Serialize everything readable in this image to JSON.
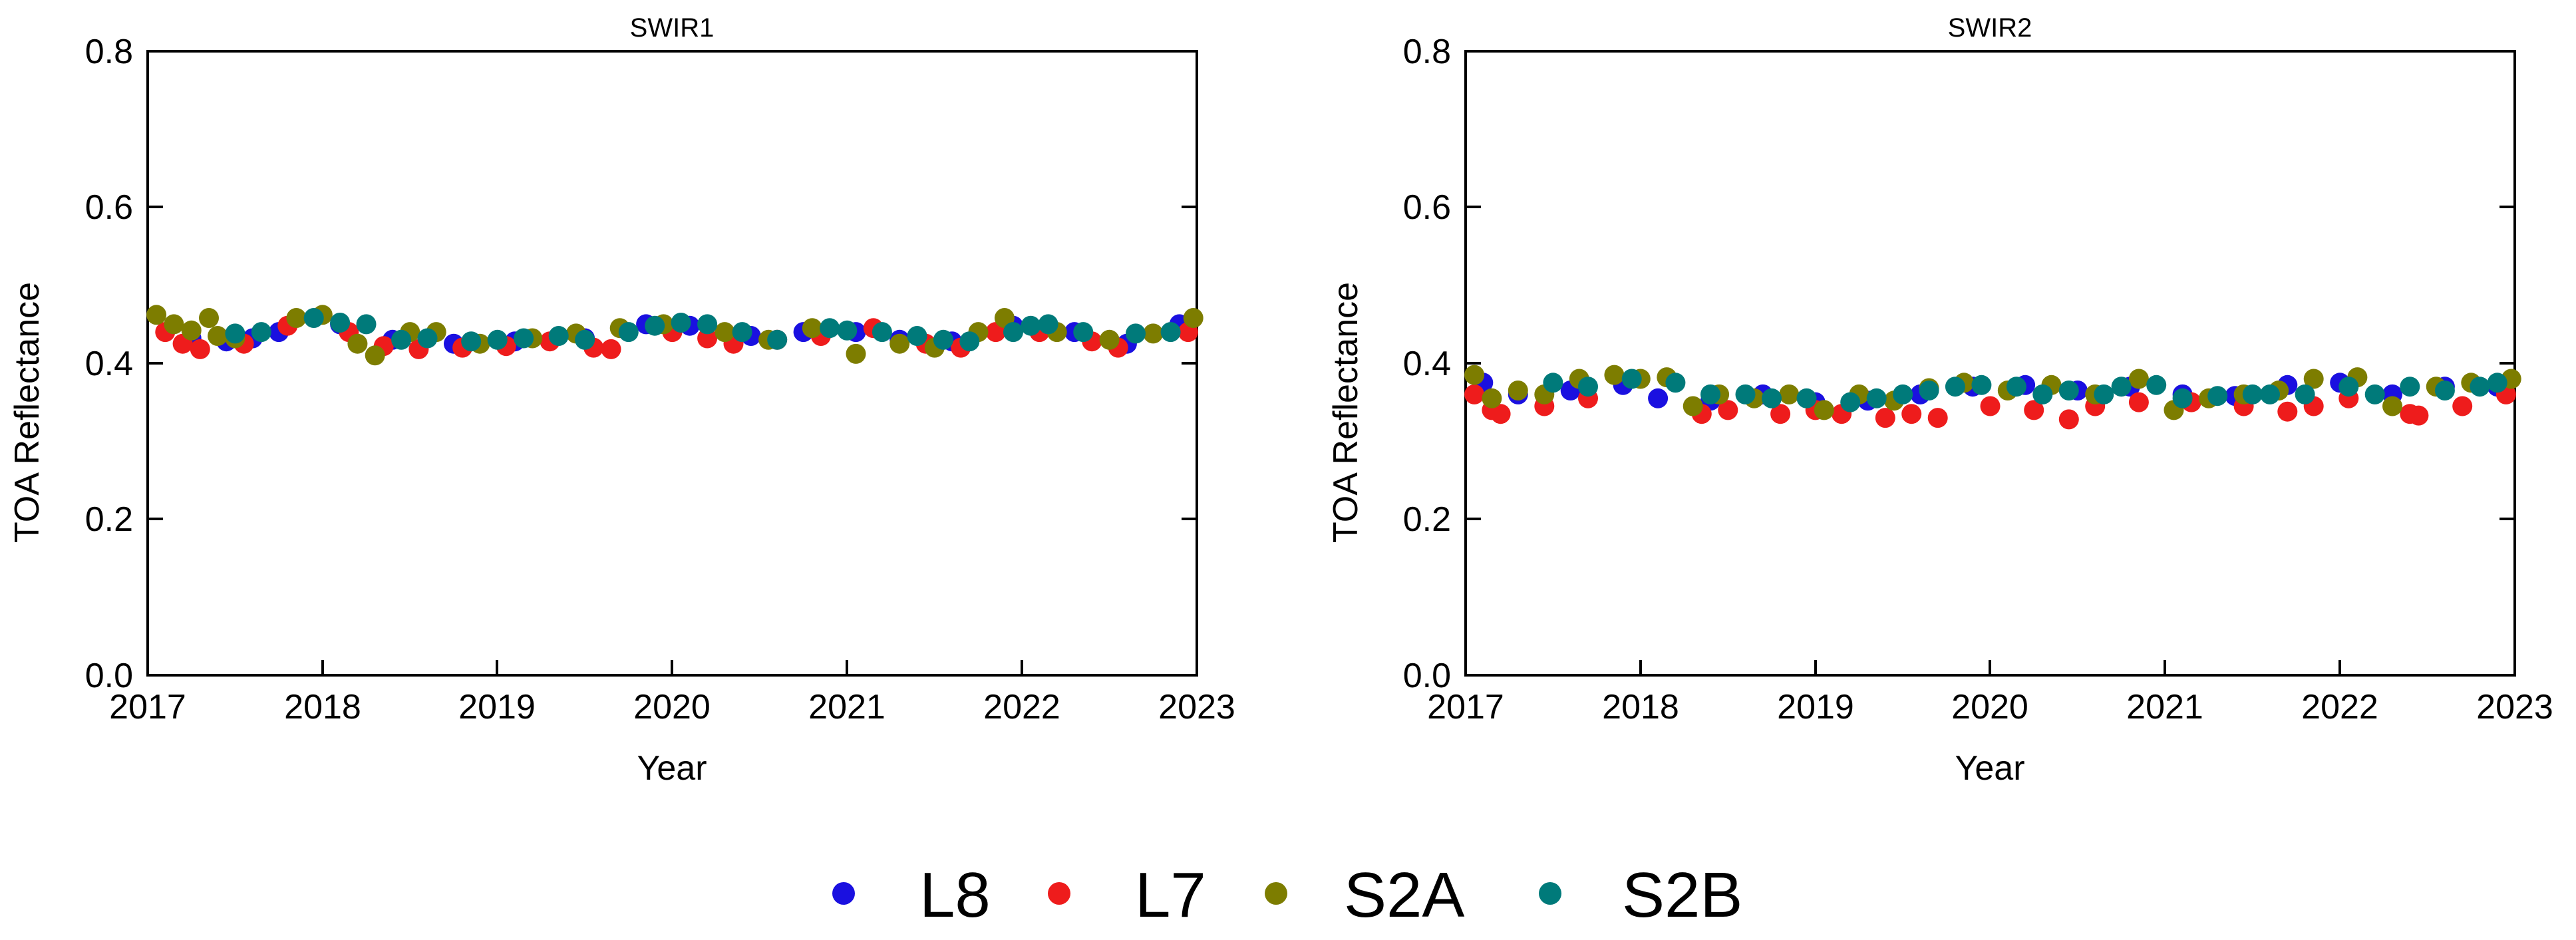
{
  "figure": {
    "legend": [
      {
        "label": "L8",
        "color": "#1a10e0"
      },
      {
        "label": "L7",
        "color": "#ee1c1c"
      },
      {
        "label": "S2A",
        "color": "#7d7d00"
      },
      {
        "label": "S2B",
        "color": "#007a7a"
      }
    ]
  },
  "chart_data": [
    {
      "type": "scatter",
      "title": "SWIR1",
      "xlabel": "Year",
      "ylabel": "TOA Reflectance",
      "xlim": [
        2017,
        2023
      ],
      "ylim": [
        0.0,
        0.8
      ],
      "xticks": [
        "2017",
        "2018",
        "2019",
        "2020",
        "2021",
        "2022",
        "2023"
      ],
      "yticks": [
        "0.0",
        "0.2",
        "0.4",
        "0.6",
        "0.8"
      ],
      "grid": false,
      "legend_position": "bottom",
      "series": [
        {
          "name": "L8",
          "color": "#1a10e0",
          "x": [
            2017.25,
            2017.45,
            2017.6,
            2017.75,
            2018.1,
            2018.4,
            2018.75,
            2019.1,
            2019.5,
            2019.85,
            2020.1,
            2020.45,
            2020.75,
            2021.05,
            2021.3,
            2021.6,
            2021.95,
            2022.3,
            2022.6,
            2022.9
          ],
          "y": [
            0.432,
            0.428,
            0.432,
            0.44,
            0.45,
            0.43,
            0.425,
            0.428,
            0.432,
            0.45,
            0.448,
            0.435,
            0.44,
            0.44,
            0.43,
            0.428,
            0.448,
            0.44,
            0.425,
            0.45
          ]
        },
        {
          "name": "L7",
          "color": "#ee1c1c",
          "x": [
            2017.1,
            2017.2,
            2017.3,
            2017.55,
            2017.8,
            2018.15,
            2018.35,
            2018.55,
            2018.8,
            2019.05,
            2019.3,
            2019.55,
            2019.65,
            2020.0,
            2020.2,
            2020.35,
            2020.6,
            2020.85,
            2021.15,
            2021.45,
            2021.65,
            2021.85,
            2022.1,
            2022.4,
            2022.55,
            2022.95
          ],
          "y": [
            0.44,
            0.425,
            0.418,
            0.425,
            0.448,
            0.44,
            0.422,
            0.418,
            0.42,
            0.422,
            0.428,
            0.42,
            0.418,
            0.44,
            0.432,
            0.425,
            0.43,
            0.435,
            0.445,
            0.425,
            0.42,
            0.44,
            0.44,
            0.428,
            0.42,
            0.44
          ]
        },
        {
          "name": "S2A",
          "color": "#7d7d00",
          "x": [
            2017.05,
            2017.15,
            2017.25,
            2017.35,
            2017.4,
            2017.5,
            2017.85,
            2018.0,
            2018.2,
            2018.3,
            2018.5,
            2018.65,
            2018.9,
            2019.2,
            2019.45,
            2019.7,
            2019.95,
            2020.3,
            2020.55,
            2020.8,
            2021.05,
            2021.3,
            2021.5,
            2021.75,
            2021.9,
            2022.2,
            2022.5,
            2022.75,
            2022.98
          ],
          "y": [
            0.462,
            0.45,
            0.442,
            0.458,
            0.435,
            0.432,
            0.458,
            0.462,
            0.425,
            0.41,
            0.44,
            0.44,
            0.425,
            0.432,
            0.438,
            0.445,
            0.45,
            0.44,
            0.43,
            0.445,
            0.412,
            0.425,
            0.42,
            0.44,
            0.458,
            0.44,
            0.43,
            0.438,
            0.458
          ]
        },
        {
          "name": "S2B",
          "color": "#007a7a",
          "x": [
            2017.5,
            2017.65,
            2017.95,
            2018.1,
            2018.25,
            2018.45,
            2018.6,
            2018.85,
            2019.0,
            2019.15,
            2019.35,
            2019.5,
            2019.75,
            2019.9,
            2020.05,
            2020.2,
            2020.4,
            2020.6,
            2020.9,
            2021.0,
            2021.2,
            2021.4,
            2021.55,
            2021.7,
            2021.95,
            2022.05,
            2022.15,
            2022.35,
            2022.65,
            2022.85
          ],
          "y": [
            0.438,
            0.44,
            0.458,
            0.452,
            0.45,
            0.43,
            0.432,
            0.428,
            0.43,
            0.432,
            0.435,
            0.43,
            0.44,
            0.448,
            0.452,
            0.45,
            0.44,
            0.43,
            0.445,
            0.442,
            0.44,
            0.435,
            0.43,
            0.428,
            0.44,
            0.448,
            0.45,
            0.44,
            0.438,
            0.44
          ]
        }
      ]
    },
    {
      "type": "scatter",
      "title": "SWIR2",
      "xlabel": "Year",
      "ylabel": "TOA Reflectance",
      "xlim": [
        2017,
        2023
      ],
      "ylim": [
        0.0,
        0.8
      ],
      "xticks": [
        "2017",
        "2018",
        "2019",
        "2020",
        "2021",
        "2022",
        "2023"
      ],
      "yticks": [
        "0.0",
        "0.2",
        "0.4",
        "0.6",
        "0.8"
      ],
      "grid": false,
      "legend_position": "bottom",
      "series": [
        {
          "name": "L8",
          "color": "#1a10e0",
          "x": [
            2017.1,
            2017.3,
            2017.6,
            2017.9,
            2018.1,
            2018.4,
            2018.7,
            2019.0,
            2019.3,
            2019.6,
            2019.9,
            2020.2,
            2020.5,
            2020.8,
            2021.1,
            2021.4,
            2021.7,
            2022.0,
            2022.3,
            2022.6,
            2022.9
          ],
          "y": [
            0.375,
            0.36,
            0.365,
            0.372,
            0.355,
            0.352,
            0.36,
            0.35,
            0.352,
            0.36,
            0.37,
            0.372,
            0.365,
            0.37,
            0.36,
            0.358,
            0.372,
            0.375,
            0.36,
            0.37,
            0.37
          ]
        },
        {
          "name": "L7",
          "color": "#ee1c1c",
          "x": [
            2017.05,
            2017.15,
            2017.2,
            2017.45,
            2017.7,
            2018.35,
            2018.5,
            2018.8,
            2019.0,
            2019.15,
            2019.4,
            2019.55,
            2019.7,
            2020.0,
            2020.25,
            2020.45,
            2020.6,
            2020.85,
            2021.15,
            2021.45,
            2021.7,
            2021.85,
            2022.05,
            2022.4,
            2022.45,
            2022.7,
            2022.95
          ],
          "y": [
            0.36,
            0.34,
            0.335,
            0.345,
            0.355,
            0.335,
            0.34,
            0.335,
            0.34,
            0.335,
            0.33,
            0.335,
            0.33,
            0.345,
            0.34,
            0.328,
            0.345,
            0.35,
            0.35,
            0.345,
            0.338,
            0.345,
            0.355,
            0.335,
            0.333,
            0.345,
            0.36
          ]
        },
        {
          "name": "S2A",
          "color": "#7d7d00",
          "x": [
            2017.05,
            2017.15,
            2017.3,
            2017.45,
            2017.65,
            2017.85,
            2018.0,
            2018.15,
            2018.3,
            2018.45,
            2018.65,
            2018.85,
            2019.05,
            2019.25,
            2019.45,
            2019.65,
            2019.85,
            2020.1,
            2020.35,
            2020.6,
            2020.85,
            2021.05,
            2021.25,
            2021.45,
            2021.65,
            2021.85,
            2022.1,
            2022.3,
            2022.55,
            2022.75,
            2022.98
          ],
          "y": [
            0.385,
            0.355,
            0.365,
            0.36,
            0.38,
            0.385,
            0.38,
            0.382,
            0.345,
            0.36,
            0.355,
            0.36,
            0.34,
            0.36,
            0.352,
            0.368,
            0.375,
            0.365,
            0.372,
            0.36,
            0.38,
            0.34,
            0.355,
            0.36,
            0.365,
            0.38,
            0.382,
            0.345,
            0.37,
            0.375,
            0.38
          ]
        },
        {
          "name": "S2B",
          "color": "#007a7a",
          "x": [
            2017.5,
            2017.7,
            2017.95,
            2018.2,
            2018.4,
            2018.6,
            2018.75,
            2018.95,
            2019.2,
            2019.35,
            2019.5,
            2019.65,
            2019.8,
            2019.95,
            2020.15,
            2020.3,
            2020.45,
            2020.65,
            2020.75,
            2020.95,
            2021.1,
            2021.3,
            2021.5,
            2021.6,
            2021.8,
            2022.05,
            2022.2,
            2022.4,
            2022.6,
            2022.8,
            2022.9
          ],
          "y": [
            0.375,
            0.37,
            0.38,
            0.375,
            0.36,
            0.36,
            0.355,
            0.355,
            0.35,
            0.355,
            0.36,
            0.365,
            0.37,
            0.372,
            0.37,
            0.36,
            0.365,
            0.36,
            0.37,
            0.372,
            0.355,
            0.358,
            0.36,
            0.36,
            0.36,
            0.37,
            0.36,
            0.37,
            0.365,
            0.37,
            0.375
          ]
        }
      ]
    }
  ]
}
